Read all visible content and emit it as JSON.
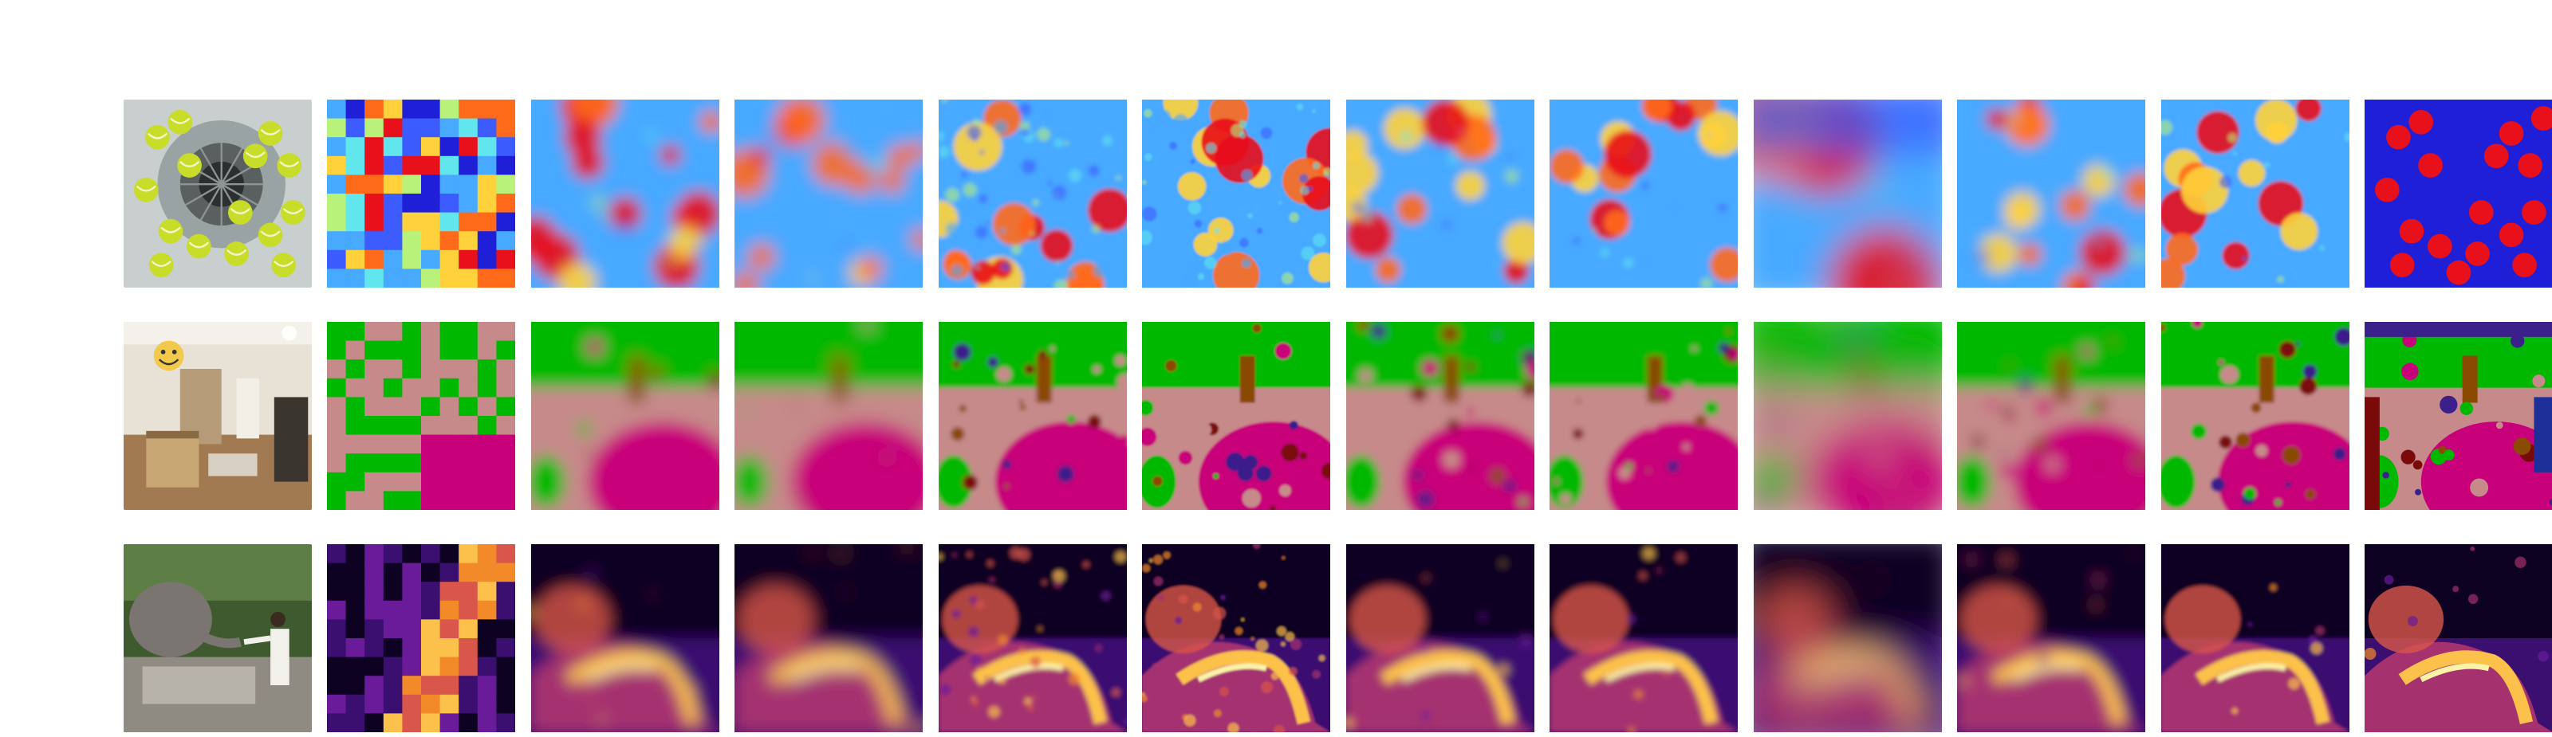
{
  "figure": {
    "rows": [
      {
        "id": "density",
        "photo": "tennis-balls-in-washing-machine",
        "colormap": "jet",
        "palette": [
          "#1f1fd8",
          "#3c5cff",
          "#47a9ff",
          "#62e6ee",
          "#b8f27a",
          "#ffd13a",
          "#ff6a1a",
          "#e8101a"
        ],
        "panel_count": 12
      },
      {
        "id": "segmentation",
        "photo": "living-room",
        "colormap": "categorical",
        "palette": [
          "#00b800",
          "#c68a8a",
          "#c8007a",
          "#8a4a00",
          "#3b1f8a",
          "#7a0a0a",
          "#1f2f9a",
          "#ffffff"
        ],
        "panel_count": 12
      },
      {
        "id": "depth",
        "photo": "elephant-feeding",
        "colormap": "inferno",
        "palette": [
          "#0d0221",
          "#3b0f6f",
          "#6a1b9a",
          "#a5316f",
          "#d9564a",
          "#f38a2a",
          "#fcc14a",
          "#fcf2a8"
        ],
        "panel_count": 12
      }
    ]
  }
}
